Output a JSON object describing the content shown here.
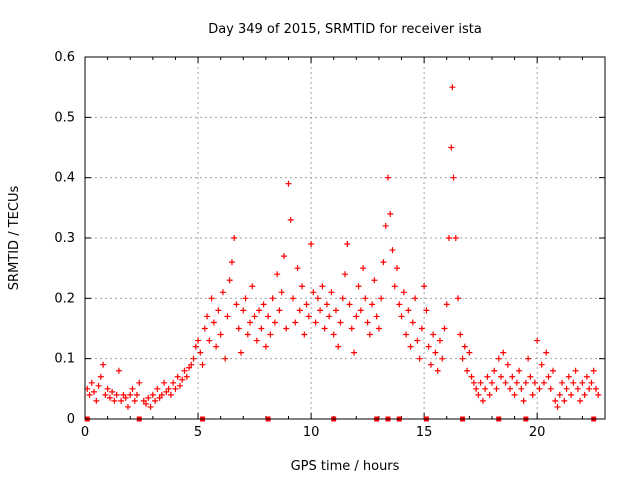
{
  "chart_data": {
    "type": "scatter",
    "title": "Day 349 of 2015, SRMTID for receiver ista",
    "xlabel": "GPS time / hours",
    "ylabel": "SRMTID / TECUs",
    "xlim": [
      0,
      23
    ],
    "ylim": [
      0,
      0.6
    ],
    "grid": true,
    "marker": "+",
    "color": "#ff0000",
    "xticks": [
      "0",
      "5",
      "10",
      "15",
      "20"
    ],
    "yticks": [
      "0",
      "0.1",
      "0.2",
      "0.3",
      "0.4",
      "0.5",
      "0.6"
    ],
    "series": [
      {
        "name": "SRMTID",
        "points": [
          [
            0.1,
            0.05
          ],
          [
            0.2,
            0.04
          ],
          [
            0.3,
            0.06
          ],
          [
            0.4,
            0.045
          ],
          [
            0.5,
            0.03
          ],
          [
            0.6,
            0.055
          ],
          [
            0.7,
            0.07
          ],
          [
            0.8,
            0.09
          ],
          [
            0.9,
            0.04
          ],
          [
            1.0,
            0.05
          ],
          [
            1.1,
            0.035
          ],
          [
            1.2,
            0.045
          ],
          [
            1.3,
            0.03
          ],
          [
            1.4,
            0.04
          ],
          [
            1.5,
            0.08
          ],
          [
            1.6,
            0.03
          ],
          [
            1.7,
            0.04
          ],
          [
            1.8,
            0.035
          ],
          [
            1.9,
            0.02
          ],
          [
            2.0,
            0.04
          ],
          [
            2.1,
            0.05
          ],
          [
            2.2,
            0.03
          ],
          [
            2.3,
            0.04
          ],
          [
            2.4,
            0.06
          ],
          [
            2.6,
            0.03
          ],
          [
            2.7,
            0.025
          ],
          [
            2.8,
            0.035
          ],
          [
            2.9,
            0.02
          ],
          [
            3.0,
            0.04
          ],
          [
            3.1,
            0.03
          ],
          [
            3.2,
            0.05
          ],
          [
            3.3,
            0.035
          ],
          [
            3.4,
            0.04
          ],
          [
            3.5,
            0.06
          ],
          [
            3.6,
            0.045
          ],
          [
            3.7,
            0.05
          ],
          [
            3.8,
            0.04
          ],
          [
            3.9,
            0.06
          ],
          [
            4.0,
            0.05
          ],
          [
            4.1,
            0.07
          ],
          [
            4.2,
            0.055
          ],
          [
            4.3,
            0.065
          ],
          [
            4.4,
            0.08
          ],
          [
            4.5,
            0.07
          ],
          [
            4.6,
            0.085
          ],
          [
            4.7,
            0.09
          ],
          [
            4.8,
            0.1
          ],
          [
            4.9,
            0.12
          ],
          [
            5.0,
            0.13
          ],
          [
            5.1,
            0.11
          ],
          [
            5.2,
            0.09
          ],
          [
            5.3,
            0.15
          ],
          [
            5.4,
            0.17
          ],
          [
            5.5,
            0.13
          ],
          [
            5.6,
            0.2
          ],
          [
            5.7,
            0.16
          ],
          [
            5.8,
            0.12
          ],
          [
            5.9,
            0.18
          ],
          [
            6.0,
            0.14
          ],
          [
            6.1,
            0.21
          ],
          [
            6.2,
            0.1
          ],
          [
            6.3,
            0.17
          ],
          [
            6.4,
            0.23
          ],
          [
            6.5,
            0.26
          ],
          [
            6.6,
            0.3
          ],
          [
            6.7,
            0.19
          ],
          [
            6.8,
            0.15
          ],
          [
            6.9,
            0.11
          ],
          [
            7.0,
            0.18
          ],
          [
            7.1,
            0.2
          ],
          [
            7.2,
            0.14
          ],
          [
            7.3,
            0.16
          ],
          [
            7.4,
            0.22
          ],
          [
            7.5,
            0.17
          ],
          [
            7.6,
            0.13
          ],
          [
            7.7,
            0.18
          ],
          [
            7.8,
            0.15
          ],
          [
            7.9,
            0.19
          ],
          [
            8.0,
            0.12
          ],
          [
            8.1,
            0.17
          ],
          [
            8.2,
            0.14
          ],
          [
            8.3,
            0.2
          ],
          [
            8.4,
            0.16
          ],
          [
            8.5,
            0.24
          ],
          [
            8.6,
            0.18
          ],
          [
            8.7,
            0.21
          ],
          [
            8.8,
            0.27
          ],
          [
            8.9,
            0.15
          ],
          [
            9.0,
            0.39
          ],
          [
            9.1,
            0.33
          ],
          [
            9.2,
            0.2
          ],
          [
            9.3,
            0.16
          ],
          [
            9.4,
            0.25
          ],
          [
            9.5,
            0.18
          ],
          [
            9.6,
            0.22
          ],
          [
            9.7,
            0.14
          ],
          [
            9.8,
            0.19
          ],
          [
            9.9,
            0.17
          ],
          [
            10.0,
            0.29
          ],
          [
            10.1,
            0.21
          ],
          [
            10.2,
            0.16
          ],
          [
            10.3,
            0.2
          ],
          [
            10.4,
            0.18
          ],
          [
            10.5,
            0.22
          ],
          [
            10.6,
            0.15
          ],
          [
            10.7,
            0.19
          ],
          [
            10.8,
            0.17
          ],
          [
            10.9,
            0.21
          ],
          [
            11.0,
            0.14
          ],
          [
            11.1,
            0.18
          ],
          [
            11.2,
            0.12
          ],
          [
            11.3,
            0.16
          ],
          [
            11.4,
            0.2
          ],
          [
            11.5,
            0.24
          ],
          [
            11.6,
            0.29
          ],
          [
            11.7,
            0.19
          ],
          [
            11.8,
            0.15
          ],
          [
            11.9,
            0.11
          ],
          [
            12.0,
            0.17
          ],
          [
            12.1,
            0.22
          ],
          [
            12.2,
            0.18
          ],
          [
            12.3,
            0.25
          ],
          [
            12.4,
            0.2
          ],
          [
            12.5,
            0.16
          ],
          [
            12.6,
            0.14
          ],
          [
            12.7,
            0.19
          ],
          [
            12.8,
            0.23
          ],
          [
            12.9,
            0.17
          ],
          [
            13.0,
            0.15
          ],
          [
            13.1,
            0.2
          ],
          [
            13.2,
            0.26
          ],
          [
            13.3,
            0.32
          ],
          [
            13.4,
            0.4
          ],
          [
            13.5,
            0.34
          ],
          [
            13.6,
            0.28
          ],
          [
            13.7,
            0.22
          ],
          [
            13.8,
            0.25
          ],
          [
            13.9,
            0.19
          ],
          [
            14.0,
            0.17
          ],
          [
            14.1,
            0.21
          ],
          [
            14.2,
            0.14
          ],
          [
            14.3,
            0.18
          ],
          [
            14.4,
            0.12
          ],
          [
            14.5,
            0.16
          ],
          [
            14.6,
            0.2
          ],
          [
            14.7,
            0.13
          ],
          [
            14.8,
            0.1
          ],
          [
            14.9,
            0.15
          ],
          [
            15.0,
            0.22
          ],
          [
            15.1,
            0.18
          ],
          [
            15.2,
            0.12
          ],
          [
            15.3,
            0.09
          ],
          [
            15.4,
            0.14
          ],
          [
            15.5,
            0.11
          ],
          [
            15.6,
            0.08
          ],
          [
            15.7,
            0.13
          ],
          [
            15.8,
            0.1
          ],
          [
            15.9,
            0.15
          ],
          [
            16.0,
            0.19
          ],
          [
            16.1,
            0.3
          ],
          [
            16.2,
            0.45
          ],
          [
            16.25,
            0.55
          ],
          [
            16.3,
            0.4
          ],
          [
            16.4,
            0.3
          ],
          [
            16.5,
            0.2
          ],
          [
            16.6,
            0.14
          ],
          [
            16.7,
            0.1
          ],
          [
            16.8,
            0.12
          ],
          [
            16.9,
            0.08
          ],
          [
            17.0,
            0.11
          ],
          [
            17.1,
            0.07
          ],
          [
            17.2,
            0.06
          ],
          [
            17.3,
            0.05
          ],
          [
            17.4,
            0.04
          ],
          [
            17.5,
            0.06
          ],
          [
            17.6,
            0.03
          ],
          [
            17.7,
            0.05
          ],
          [
            17.8,
            0.07
          ],
          [
            17.9,
            0.04
          ],
          [
            18.0,
            0.06
          ],
          [
            18.1,
            0.08
          ],
          [
            18.2,
            0.05
          ],
          [
            18.3,
            0.1
          ],
          [
            18.4,
            0.07
          ],
          [
            18.5,
            0.11
          ],
          [
            18.6,
            0.06
          ],
          [
            18.7,
            0.09
          ],
          [
            18.8,
            0.05
          ],
          [
            18.9,
            0.07
          ],
          [
            19.0,
            0.04
          ],
          [
            19.1,
            0.06
          ],
          [
            19.2,
            0.08
          ],
          [
            19.3,
            0.05
          ],
          [
            19.4,
            0.03
          ],
          [
            19.5,
            0.06
          ],
          [
            19.6,
            0.1
          ],
          [
            19.7,
            0.07
          ],
          [
            19.8,
            0.04
          ],
          [
            19.9,
            0.06
          ],
          [
            20.0,
            0.13
          ],
          [
            20.1,
            0.05
          ],
          [
            20.2,
            0.09
          ],
          [
            20.3,
            0.06
          ],
          [
            20.4,
            0.11
          ],
          [
            20.5,
            0.07
          ],
          [
            20.6,
            0.05
          ],
          [
            20.7,
            0.08
          ],
          [
            20.8,
            0.03
          ],
          [
            20.9,
            0.02
          ],
          [
            21.0,
            0.04
          ],
          [
            21.1,
            0.06
          ],
          [
            21.2,
            0.03
          ],
          [
            21.3,
            0.05
          ],
          [
            21.4,
            0.07
          ],
          [
            21.5,
            0.04
          ],
          [
            21.6,
            0.06
          ],
          [
            21.7,
            0.08
          ],
          [
            21.8,
            0.05
          ],
          [
            21.9,
            0.03
          ],
          [
            22.0,
            0.06
          ],
          [
            22.1,
            0.04
          ],
          [
            22.2,
            0.07
          ],
          [
            22.3,
            0.05
          ],
          [
            22.4,
            0.06
          ],
          [
            22.5,
            0.08
          ],
          [
            22.6,
            0.05
          ],
          [
            22.7,
            0.04
          ]
        ]
      }
    ],
    "gap_markers_x": [
      0.1,
      2.4,
      5.2,
      8.1,
      11.0,
      12.9,
      13.4,
      13.9,
      15.1,
      16.7,
      18.3,
      19.5,
      22.5
    ]
  }
}
